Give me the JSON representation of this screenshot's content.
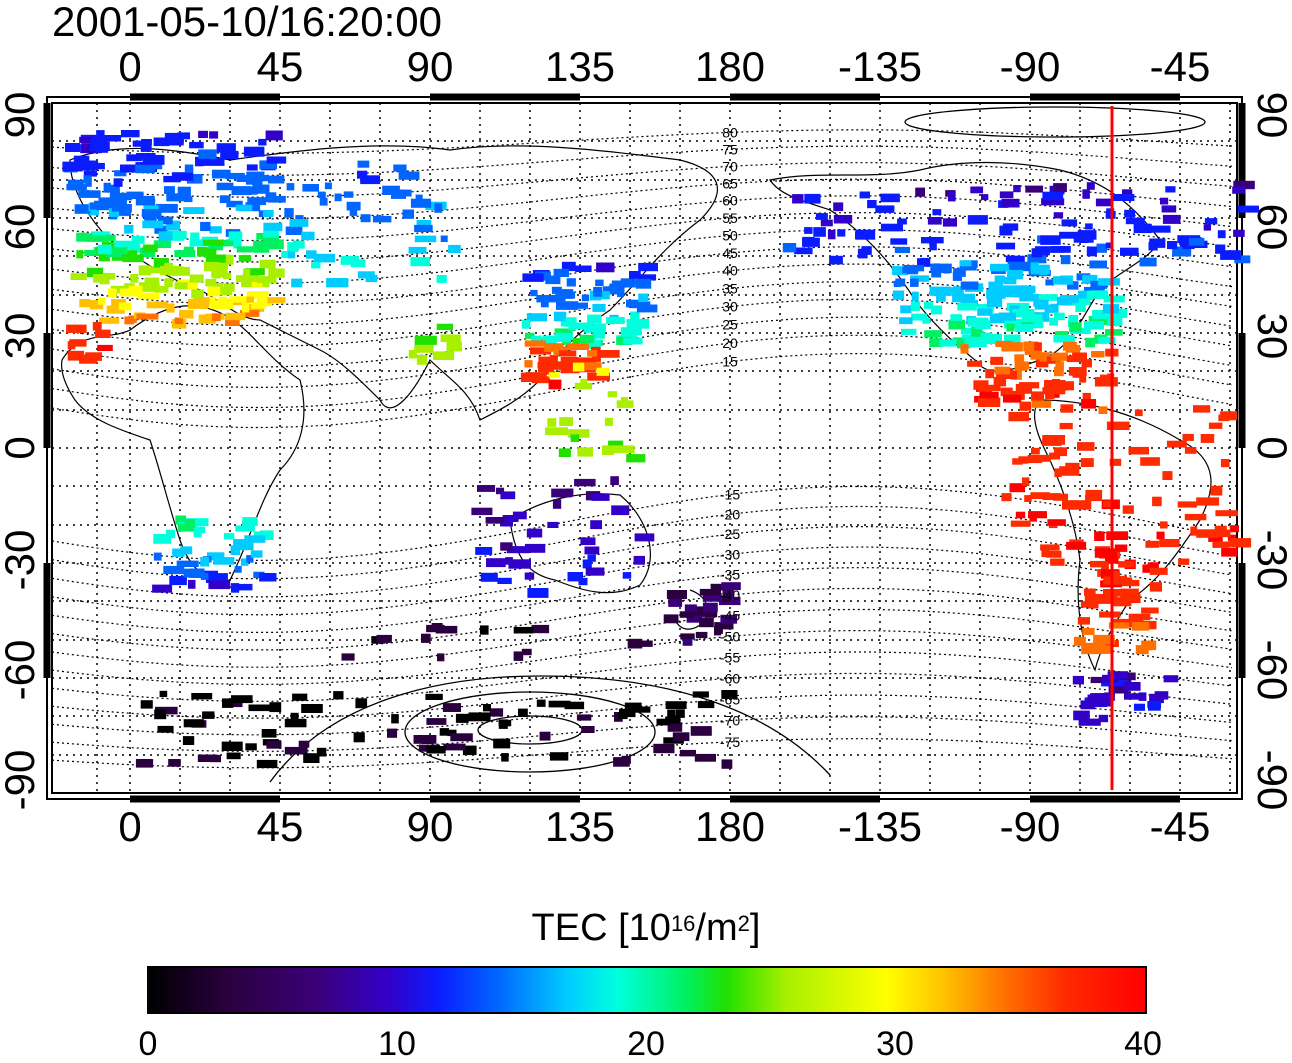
{
  "title": "2001-05-10/16:20:00",
  "map": {
    "x_ticks": [
      "0",
      "45",
      "90",
      "135",
      "180",
      "-135",
      "-90",
      "-45"
    ],
    "y_ticks": [
      "90",
      "60",
      "30",
      "0",
      "-30",
      "-60",
      "-90"
    ],
    "contour_labels": [
      "80",
      "75",
      "70",
      "65",
      "60",
      "55",
      "50",
      "45",
      "40",
      "35",
      "30",
      "25",
      "20",
      "15",
      "-15",
      "-20",
      "-25",
      "-30",
      "-35",
      "-40",
      "-45",
      "-50",
      "-55",
      "-60",
      "-65",
      "-70",
      "-75"
    ],
    "marker_line_longitude": -66,
    "marker_color": "#ff0000"
  },
  "colorbar": {
    "label_main": "TEC  [10",
    "label_exp1": "16",
    "label_mid": "/m",
    "label_exp2": "2",
    "label_end": "]",
    "min": 0,
    "max": 40,
    "ticks": [
      "0",
      "10",
      "20",
      "30",
      "40"
    ],
    "colormap": "jet-like (black-purple-blue-cyan-green-yellow-red)"
  }
}
